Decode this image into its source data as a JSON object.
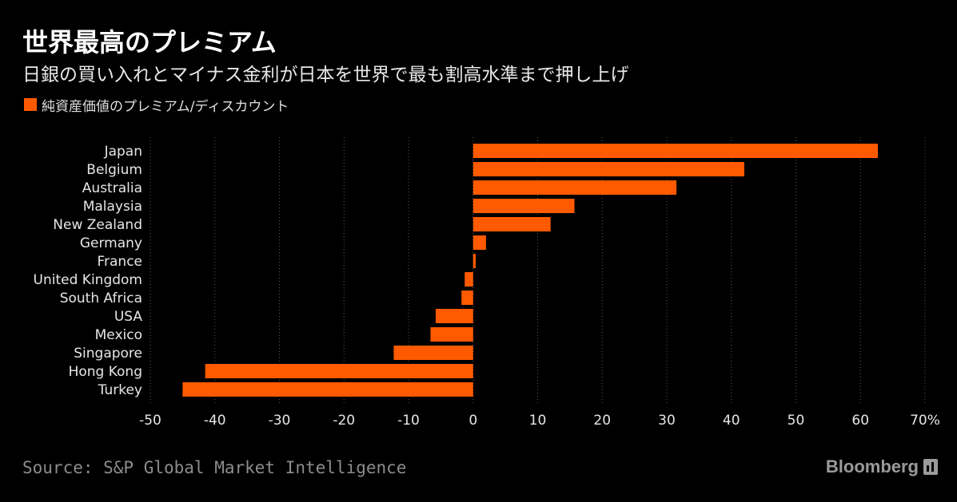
{
  "header": {
    "title": "世界最高のプレミアム",
    "subtitle": "日銀の買い入れとマイナス金利が日本を世界で最も割高水準まで押し上げ"
  },
  "legend": {
    "label": "純資産価値のプレミアム/ディスカウント",
    "color": "#ff5a00"
  },
  "footer": {
    "source": "Source: S&P Global Market Intelligence",
    "brand": "Bloomberg"
  },
  "chart_data": {
    "type": "bar",
    "orientation": "horizontal",
    "categories": [
      "Japan",
      "Belgium",
      "Australia",
      "Malaysia",
      "New Zealand",
      "Germany",
      "France",
      "United Kingdom",
      "South Africa",
      "USA",
      "Mexico",
      "Singapore",
      "Hong Kong",
      "Turkey"
    ],
    "values": [
      62.7,
      42.0,
      31.5,
      15.7,
      12.0,
      2.0,
      0.4,
      -1.3,
      -1.8,
      -5.8,
      -6.6,
      -12.3,
      -41.5,
      -45.0
    ],
    "xlim": [
      -50,
      70
    ],
    "xticks": [
      "-50",
      "-40",
      "-30",
      "-20",
      "-10",
      "0",
      "10",
      "20",
      "30",
      "40",
      "50",
      "60",
      "70%"
    ],
    "bar_color": "#ff5a00",
    "grid": "vertical dotted",
    "legend_position": "top-left"
  }
}
